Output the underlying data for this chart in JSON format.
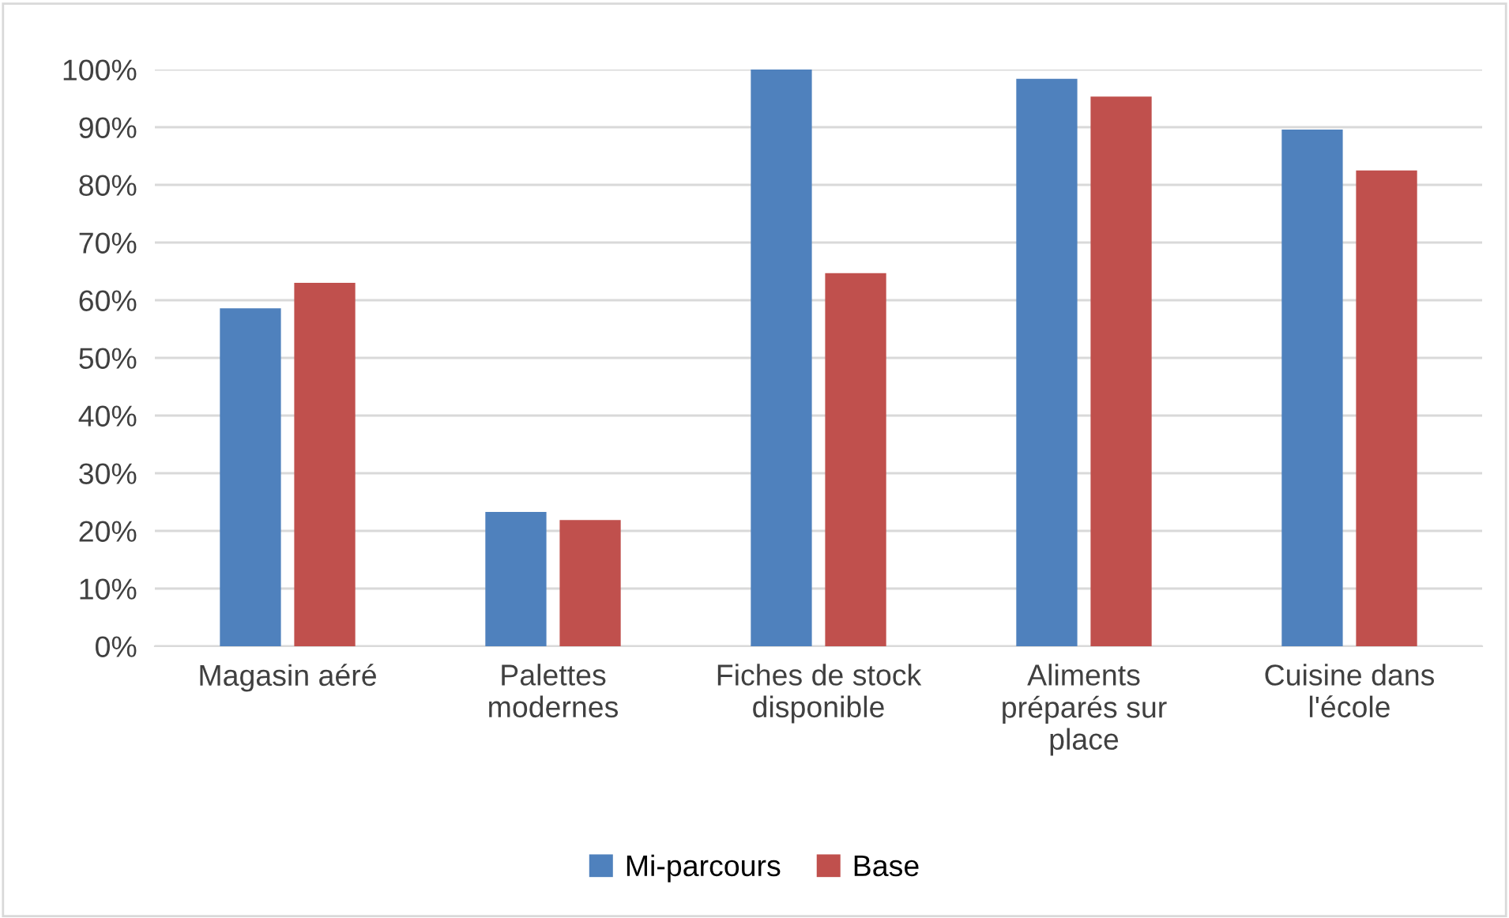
{
  "chart_data": {
    "type": "bar",
    "categories": [
      "Magasin aéré",
      "Palettes\nmodernes",
      "Fiches de stock\ndisponible",
      "Aliments\npréparés sur\nplace",
      "Cuisine dans\nl'école"
    ],
    "series": [
      {
        "name": "Mi-parcours",
        "color": "#4f81bd",
        "values": [
          58.6,
          23.3,
          100,
          98.4,
          89.6
        ]
      },
      {
        "name": "Base",
        "color": "#c0504d",
        "values": [
          63.0,
          21.9,
          64.7,
          95.3,
          82.5
        ]
      }
    ],
    "ylim": [
      0,
      100
    ],
    "yticks": [
      {
        "value": 0,
        "label": "0%"
      },
      {
        "value": 10,
        "label": "10%"
      },
      {
        "value": 20,
        "label": "20%"
      },
      {
        "value": 30,
        "label": "30%"
      },
      {
        "value": 40,
        "label": "40%"
      },
      {
        "value": 50,
        "label": "50%"
      },
      {
        "value": 60,
        "label": "60%"
      },
      {
        "value": 70,
        "label": "70%"
      },
      {
        "value": 80,
        "label": "80%"
      },
      {
        "value": 90,
        "label": "90%"
      },
      {
        "value": 100,
        "label": "100%"
      }
    ],
    "grid": "y",
    "legend": "bottom"
  }
}
